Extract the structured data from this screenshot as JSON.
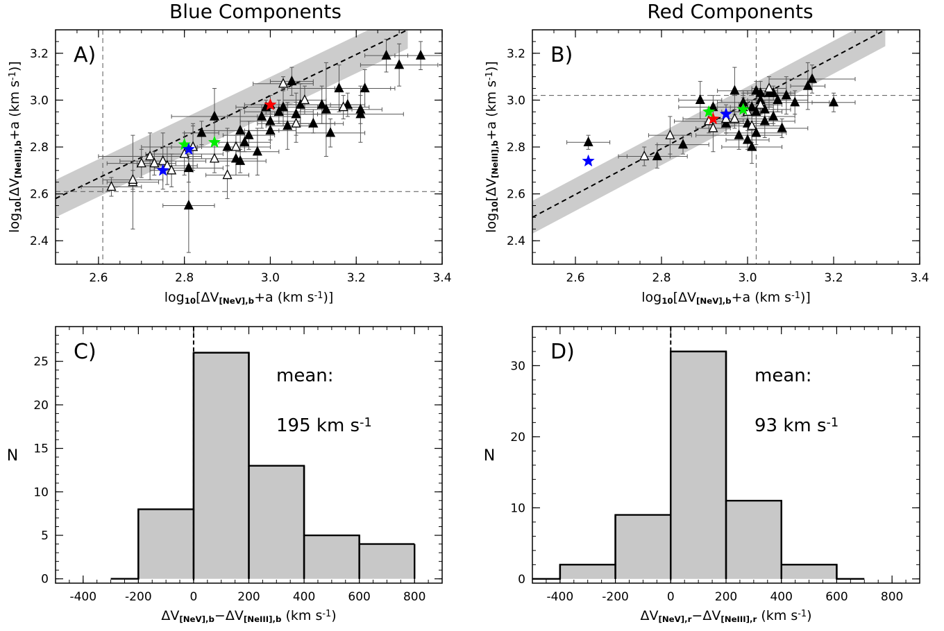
{
  "titles": {
    "left": "Blue Components",
    "right": "Red Components"
  },
  "colors": {
    "band": "#cccccc",
    "hist_fill": "#c8c8c8",
    "ink": "#000000",
    "err": "#555555",
    "red": "#ff0000",
    "green": "#00ee00",
    "blue": "#0000ff"
  },
  "chart_data": [
    {
      "id": "A",
      "type": "scatter",
      "panel_label": "A)",
      "xlabel": {
        "pre": "log",
        "sub1": "10",
        "mid": "[ΔV",
        "sub2": "[NeV],b",
        "post": "+a (km s",
        "sup": "-1",
        "end": ")]"
      },
      "ylabel": {
        "pre": "log",
        "sub1": "10",
        "mid": "[ΔV",
        "sub2": "[NeIII],b",
        "post": "+a (km s",
        "sup": "-1",
        "end": ")]"
      },
      "xlim": [
        2.5,
        3.4
      ],
      "ylim": [
        2.3,
        3.3
      ],
      "xticks": [
        "2.6",
        "2.8",
        "3.0",
        "3.2",
        "3.4"
      ],
      "yticks": [
        "2.4",
        "2.6",
        "2.8",
        "3.0",
        "3.2"
      ],
      "refline_v": 2.61,
      "refline_h": 2.61,
      "fit_line": [
        [
          2.5,
          2.58
        ],
        [
          3.32,
          3.3
        ]
      ],
      "band_halfwidth": 0.08,
      "filled": [
        [
          2.81,
          2.55
        ],
        [
          2.81,
          2.71
        ],
        [
          2.82,
          2.8
        ],
        [
          2.84,
          2.86
        ],
        [
          2.87,
          2.93
        ],
        [
          2.9,
          2.8
        ],
        [
          2.92,
          2.75
        ],
        [
          2.93,
          2.87
        ],
        [
          2.95,
          2.85
        ],
        [
          2.97,
          2.78
        ],
        [
          2.98,
          2.93
        ],
        [
          3.0,
          2.87
        ],
        [
          3.0,
          2.91
        ],
        [
          3.03,
          2.97
        ],
        [
          3.05,
          3.08
        ],
        [
          3.06,
          2.94
        ],
        [
          3.07,
          2.98
        ],
        [
          3.1,
          2.9
        ],
        [
          3.13,
          2.96
        ],
        [
          3.14,
          2.86
        ],
        [
          3.16,
          3.05
        ],
        [
          3.18,
          2.98
        ],
        [
          3.21,
          2.94
        ],
        [
          3.22,
          3.05
        ],
        [
          3.27,
          3.19
        ],
        [
          3.3,
          3.15
        ],
        [
          3.35,
          3.19
        ],
        [
          3.04,
          2.89
        ],
        [
          3.02,
          2.95
        ],
        [
          2.94,
          2.82
        ],
        [
          2.99,
          2.97
        ],
        [
          3.12,
          2.98
        ],
        [
          3.21,
          2.96
        ],
        [
          2.93,
          2.74
        ],
        [
          3.06,
          2.94
        ]
      ],
      "open": [
        [
          2.63,
          2.63
        ],
        [
          2.68,
          2.65
        ],
        [
          2.7,
          2.73
        ],
        [
          2.72,
          2.76
        ],
        [
          2.73,
          2.73
        ],
        [
          2.75,
          2.74
        ],
        [
          2.76,
          2.72
        ],
        [
          2.77,
          2.7
        ],
        [
          2.8,
          2.77
        ],
        [
          2.87,
          2.75
        ],
        [
          2.9,
          2.68
        ],
        [
          2.92,
          2.8
        ],
        [
          3.0,
          2.98
        ],
        [
          3.03,
          3.07
        ],
        [
          3.06,
          2.9
        ],
        [
          3.08,
          3.0
        ],
        [
          3.17,
          2.97
        ],
        [
          2.82,
          2.8
        ],
        [
          2.68,
          2.66
        ]
      ],
      "xerr": [
        0.06,
        0.08,
        0.12,
        0.04,
        0.1,
        0.07,
        0.05,
        0.09,
        0.06,
        0.05,
        0.08,
        0.06,
        0.07,
        0.09,
        0.05,
        0.06,
        0.05,
        0.07
      ],
      "yerr": [
        0.2,
        0.06,
        0.1,
        0.05,
        0.12,
        0.08,
        0.07,
        0.09,
        0.06,
        0.1,
        0.05,
        0.04,
        0.03,
        0.08,
        0.06,
        0.05,
        0.09,
        0.04
      ],
      "stars": [
        {
          "color": "red",
          "points": [
            [
              3.0,
              2.98
            ]
          ]
        },
        {
          "color": "green",
          "points": [
            [
              2.8,
              2.81
            ],
            [
              2.87,
              2.82
            ]
          ]
        },
        {
          "color": "blue",
          "points": [
            [
              2.75,
              2.7
            ],
            [
              2.81,
              2.79
            ]
          ]
        }
      ]
    },
    {
      "id": "B",
      "type": "scatter",
      "panel_label": "B)",
      "xlabel": {
        "pre": "log",
        "sub1": "10",
        "mid": "[ΔV",
        "sub2": "[NeV],b",
        "post": "+a (km s",
        "sup": "-1",
        "end": ")]"
      },
      "ylabel": {
        "pre": "log",
        "sub1": "10",
        "mid": "[ΔV",
        "sub2": "[NeIII],b",
        "post": "+a (km s",
        "sup": "-1",
        "end": ")]"
      },
      "xlim": [
        2.5,
        3.4
      ],
      "ylim": [
        2.3,
        3.3
      ],
      "xticks": [
        "2.6",
        "2.8",
        "3.0",
        "3.2",
        "3.4"
      ],
      "yticks": [
        "2.4",
        "2.6",
        "2.8",
        "3.0",
        "3.2"
      ],
      "refline_v": 3.02,
      "refline_h": 3.02,
      "fit_line": [
        [
          2.5,
          2.5
        ],
        [
          3.32,
          3.3
        ]
      ],
      "band_halfwidth": 0.07,
      "filled": [
        [
          2.63,
          2.82
        ],
        [
          2.79,
          2.76
        ],
        [
          2.85,
          2.81
        ],
        [
          2.89,
          3.0
        ],
        [
          2.92,
          2.97
        ],
        [
          2.97,
          3.04
        ],
        [
          2.98,
          2.85
        ],
        [
          3.0,
          2.83
        ],
        [
          3.0,
          2.9
        ],
        [
          3.01,
          2.8
        ],
        [
          3.02,
          3.04
        ],
        [
          3.03,
          3.0
        ],
        [
          3.04,
          2.96
        ],
        [
          3.05,
          3.03
        ],
        [
          3.06,
          2.93
        ],
        [
          3.07,
          3.0
        ],
        [
          3.08,
          2.88
        ],
        [
          3.09,
          3.02
        ],
        [
          3.11,
          2.99
        ],
        [
          3.14,
          3.06
        ],
        [
          3.15,
          3.09
        ],
        [
          3.2,
          2.99
        ],
        [
          3.02,
          2.95
        ],
        [
          3.04,
          2.91
        ],
        [
          2.95,
          2.9
        ],
        [
          3.03,
          3.03
        ],
        [
          2.99,
          2.99
        ],
        [
          3.01,
          2.97
        ],
        [
          3.06,
          3.03
        ],
        [
          3.02,
          2.86
        ]
      ],
      "open": [
        [
          2.76,
          2.76
        ],
        [
          2.82,
          2.85
        ],
        [
          2.91,
          2.91
        ],
        [
          2.92,
          2.88
        ],
        [
          2.95,
          2.92
        ],
        [
          2.97,
          2.92
        ],
        [
          3.0,
          2.95
        ],
        [
          3.01,
          2.89
        ],
        [
          3.03,
          2.98
        ],
        [
          3.05,
          3.05
        ],
        [
          2.99,
          2.97
        ]
      ],
      "xerr": [
        0.05,
        0.07,
        0.06,
        0.05,
        0.08,
        0.04,
        0.1,
        0.05,
        0.06,
        0.07,
        0.05,
        0.04,
        0.06,
        0.05
      ],
      "yerr": [
        0.03,
        0.05,
        0.04,
        0.08,
        0.05,
        0.1,
        0.06,
        0.04,
        0.05,
        0.07,
        0.04,
        0.05,
        0.04,
        0.03
      ],
      "stars": [
        {
          "color": "red",
          "points": [
            [
              2.92,
              2.92
            ]
          ]
        },
        {
          "color": "green",
          "points": [
            [
              2.91,
              2.95
            ],
            [
              2.99,
              2.96
            ]
          ]
        },
        {
          "color": "blue",
          "points": [
            [
              2.63,
              2.74
            ],
            [
              2.95,
              2.94
            ]
          ]
        }
      ]
    },
    {
      "id": "C",
      "type": "histogram",
      "panel_label": "C)",
      "xlabel": {
        "a": "ΔV",
        "asub": "[NeV],b",
        "b": "−ΔV",
        "bsub": "[NeIII],b",
        "c": " (km s",
        "sup": "-1",
        "d": ")"
      },
      "ylabel": "N",
      "xlim": [
        -500,
        900
      ],
      "ylim": [
        -0.5,
        29
      ],
      "xticks": [
        "-400",
        "-200",
        "0",
        "200",
        "400",
        "600",
        "800"
      ],
      "yticks": [
        "0",
        "5",
        "10",
        "15",
        "20",
        "25"
      ],
      "bins": [
        [
          -300,
          -200,
          0
        ],
        [
          -200,
          0,
          8
        ],
        [
          0,
          200,
          26
        ],
        [
          200,
          400,
          13
        ],
        [
          400,
          600,
          5
        ],
        [
          600,
          800,
          4
        ]
      ],
      "annotation": {
        "line1": "mean:",
        "line2": "195 km s",
        "sup": "-1"
      }
    },
    {
      "id": "D",
      "type": "histogram",
      "panel_label": "D)",
      "xlabel": {
        "a": "ΔV",
        "asub": "[NeV],r",
        "b": "−ΔV",
        "bsub": "[NeIII],r",
        "c": " (km s",
        "sup": "-1",
        "d": ")"
      },
      "ylabel": "N",
      "xlim": [
        -500,
        900
      ],
      "ylim": [
        -0.6,
        35.5
      ],
      "xticks": [
        "-400",
        "-200",
        "0",
        "200",
        "400",
        "600",
        "800"
      ],
      "yticks": [
        "0",
        "10",
        "20",
        "30"
      ],
      "bins": [
        [
          -500,
          -400,
          0
        ],
        [
          -400,
          -200,
          2
        ],
        [
          -200,
          0,
          9
        ],
        [
          0,
          200,
          32
        ],
        [
          200,
          400,
          11
        ],
        [
          400,
          600,
          2
        ],
        [
          600,
          700,
          0
        ]
      ],
      "annotation": {
        "line1": "mean:",
        "line2": "93 km s",
        "sup": "-1"
      }
    }
  ]
}
